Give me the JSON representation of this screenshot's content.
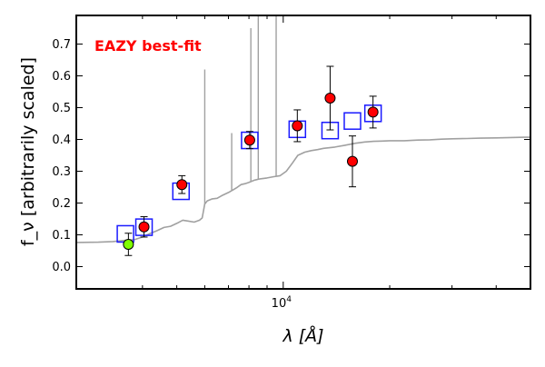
{
  "chart_data": {
    "type": "scatter",
    "title": "EAZY best-fit",
    "title_color": "#ff0000",
    "xlabel": "λ [Å]",
    "ylabel": "f_ν [arbitrarily scaled]",
    "xscale": "log",
    "xlim": [
      2600,
      50000
    ],
    "ylim": [
      -0.07,
      0.79
    ],
    "x_major_ticks": [
      10000
    ],
    "x_major_tick_label": "10",
    "x_major_tick_exponent": "4",
    "x_minor_ticks": [
      4000,
      5000,
      6000,
      7000,
      8000,
      9000,
      20000,
      30000,
      40000
    ],
    "y_ticks": [
      0.0,
      0.1,
      0.2,
      0.3,
      0.4,
      0.5,
      0.6,
      0.7
    ],
    "y_tick_labels": [
      "0.0",
      "0.1",
      "0.2",
      "0.3",
      "0.4",
      "0.5",
      "0.6",
      "0.7"
    ],
    "grid": false,
    "legend": "none",
    "sed_color": "#a0a0a0",
    "model_box_color": "#1a1aff",
    "detection_color": "#ff0000",
    "highlight_color": "#7fff00",
    "sed_template": [
      [
        2600,
        0.076
      ],
      [
        3000,
        0.077
      ],
      [
        3300,
        0.079
      ],
      [
        3600,
        0.083
      ],
      [
        3800,
        0.085
      ],
      [
        4000,
        0.093
      ],
      [
        4200,
        0.104
      ],
      [
        4400,
        0.113
      ],
      [
        4600,
        0.123
      ],
      [
        4800,
        0.127
      ],
      [
        5000,
        0.136
      ],
      [
        5200,
        0.146
      ],
      [
        5400,
        0.143
      ],
      [
        5600,
        0.14
      ],
      [
        5800,
        0.146
      ],
      [
        5900,
        0.153
      ],
      [
        6000,
        0.197
      ],
      [
        6100,
        0.207
      ],
      [
        6300,
        0.213
      ],
      [
        6500,
        0.215
      ],
      [
        6700,
        0.223
      ],
      [
        7000,
        0.233
      ],
      [
        7200,
        0.241
      ],
      [
        7400,
        0.249
      ],
      [
        7600,
        0.258
      ],
      [
        7800,
        0.261
      ],
      [
        8000,
        0.265
      ],
      [
        8300,
        0.272
      ],
      [
        8600,
        0.276
      ],
      [
        9000,
        0.279
      ],
      [
        9400,
        0.283
      ],
      [
        9800,
        0.286
      ],
      [
        10200,
        0.3
      ],
      [
        10600,
        0.325
      ],
      [
        11000,
        0.35
      ],
      [
        11500,
        0.36
      ],
      [
        12000,
        0.365
      ],
      [
        12500,
        0.368
      ],
      [
        13000,
        0.372
      ],
      [
        14000,
        0.376
      ],
      [
        15000,
        0.382
      ],
      [
        16000,
        0.388
      ],
      [
        17000,
        0.392
      ],
      [
        18000,
        0.394
      ],
      [
        19000,
        0.395
      ],
      [
        20000,
        0.396
      ],
      [
        22000,
        0.396
      ],
      [
        24000,
        0.398
      ],
      [
        26000,
        0.399
      ],
      [
        28000,
        0.401
      ],
      [
        30000,
        0.402
      ],
      [
        33000,
        0.403
      ],
      [
        36000,
        0.404
      ],
      [
        40000,
        0.405
      ],
      [
        44000,
        0.406
      ],
      [
        48000,
        0.407
      ],
      [
        50000,
        0.407
      ]
    ],
    "sed_emission_lines": [
      {
        "wavelength": 6000,
        "peak": 0.62
      },
      {
        "wavelength": 7150,
        "peak": 0.42
      },
      {
        "wavelength": 8100,
        "peak": 0.75
      },
      {
        "wavelength": 8500,
        "peak": 0.79
      },
      {
        "wavelength": 9550,
        "peak": 0.79
      }
    ],
    "model_fluxes": [
      {
        "wavelength": 3580,
        "flux": 0.103
      },
      {
        "wavelength": 4040,
        "flux": 0.124
      },
      {
        "wavelength": 5140,
        "flux": 0.237
      },
      {
        "wavelength": 8040,
        "flux": 0.397
      },
      {
        "wavelength": 10960,
        "flux": 0.432
      },
      {
        "wavelength": 13570,
        "flux": 0.428
      },
      {
        "wavelength": 15690,
        "flux": 0.458
      },
      {
        "wavelength": 17940,
        "flux": 0.482
      }
    ],
    "observed_fluxes": [
      {
        "wavelength": 3650,
        "flux": 0.07,
        "err": 0.035,
        "highlight": true
      },
      {
        "wavelength": 4040,
        "flux": 0.125,
        "err": 0.032,
        "highlight": false
      },
      {
        "wavelength": 5170,
        "flux": 0.258,
        "err": 0.028,
        "highlight": false
      },
      {
        "wavelength": 8040,
        "flux": 0.398,
        "err": 0.027,
        "highlight": false
      },
      {
        "wavelength": 10960,
        "flux": 0.443,
        "err": 0.05,
        "highlight": false
      },
      {
        "wavelength": 13570,
        "flux": 0.53,
        "err": 0.1,
        "highlight": false
      },
      {
        "wavelength": 15690,
        "flux": 0.331,
        "err": 0.08,
        "highlight": false
      },
      {
        "wavelength": 17940,
        "flux": 0.486,
        "err": 0.05,
        "highlight": false
      }
    ]
  }
}
